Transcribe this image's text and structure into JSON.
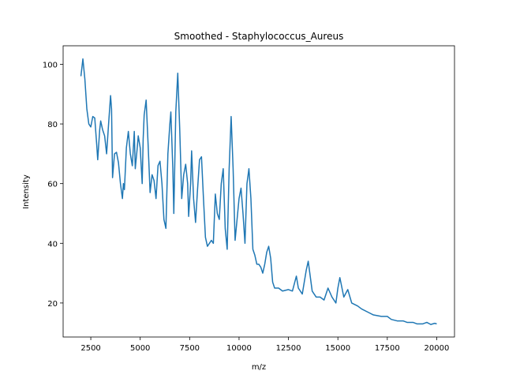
{
  "chart_data": {
    "type": "line",
    "title": "Smoothed - Staphylococcus_Aureus",
    "xlabel": "m/z",
    "ylabel": "Intensity",
    "x": [
      2000,
      2100,
      2200,
      2300,
      2400,
      2500,
      2600,
      2700,
      2800,
      2850,
      2950,
      3000,
      3100,
      3200,
      3300,
      3400,
      3500,
      3550,
      3600,
      3700,
      3800,
      3900,
      4000,
      4100,
      4150,
      4200,
      4300,
      4400,
      4500,
      4600,
      4700,
      4750,
      4850,
      4900,
      5000,
      5100,
      5150,
      5200,
      5300,
      5400,
      5500,
      5600,
      5700,
      5800,
      5900,
      6000,
      6100,
      6200,
      6300,
      6400,
      6500,
      6550,
      6650,
      6700,
      6800,
      6900,
      7000,
      7100,
      7200,
      7300,
      7400,
      7450,
      7550,
      7600,
      7700,
      7800,
      7900,
      8000,
      8100,
      8200,
      8300,
      8400,
      8500,
      8600,
      8700,
      8800,
      8900,
      9000,
      9100,
      9200,
      9300,
      9400,
      9500,
      9600,
      9700,
      9800,
      9900,
      10000,
      10100,
      10200,
      10300,
      10400,
      10500,
      10600,
      10700,
      10800,
      10900,
      11000,
      11100,
      11200,
      11300,
      11400,
      11500,
      11600,
      11700,
      11800,
      12000,
      12200,
      12500,
      12700,
      12900,
      13000,
      13200,
      13400,
      13500,
      13700,
      13900,
      14100,
      14300,
      14500,
      14700,
      14900,
      15000,
      15100,
      15300,
      15500,
      15700,
      16000,
      16200,
      16500,
      16800,
      17200,
      17500,
      17700,
      18000,
      18300,
      18500,
      18800,
      19000,
      19300,
      19500,
      19700,
      19900,
      20000
    ],
    "values": [
      96,
      101.8,
      95,
      85,
      80,
      79,
      82.5,
      82,
      73,
      68,
      78,
      81,
      78,
      76,
      70,
      80,
      89.5,
      85,
      62,
      70,
      70.5,
      67,
      60,
      55,
      60,
      58,
      72,
      77.5,
      70,
      66,
      77.5,
      65,
      72,
      76,
      72,
      60,
      75,
      83,
      88,
      73,
      57,
      63,
      61,
      55,
      66,
      67.5,
      60,
      48,
      45,
      70,
      80,
      84,
      65,
      50,
      84,
      97,
      78,
      55,
      63,
      66.5,
      60,
      49,
      60,
      71,
      55,
      47,
      58,
      68,
      69,
      55,
      42,
      39,
      40,
      41,
      40,
      56.5,
      50,
      48,
      60,
      65,
      45,
      38,
      65,
      82.5,
      65,
      41,
      48,
      55,
      58.5,
      50,
      40,
      60,
      65,
      55,
      38,
      36,
      33,
      33,
      32,
      30,
      33,
      37,
      39,
      35,
      27,
      25,
      25,
      24,
      24.5,
      24,
      29,
      25,
      23,
      31,
      34,
      24,
      22,
      22,
      21,
      25,
      22,
      20,
      25,
      28.5,
      22,
      24.5,
      20,
      19,
      18,
      17,
      16,
      15.5,
      15.5,
      14.5,
      14,
      14,
      13.5,
      13.5,
      13,
      13,
      13.5,
      12.8,
      13.2,
      13
    ],
    "color": "#1f77b4",
    "xlim": [
      1100,
      20900
    ],
    "ylim": [
      8.6,
      106.2
    ],
    "xticks": [
      2500,
      5000,
      7500,
      10000,
      12500,
      15000,
      17500,
      20000
    ],
    "yticks": [
      20,
      40,
      60,
      80,
      100
    ]
  }
}
